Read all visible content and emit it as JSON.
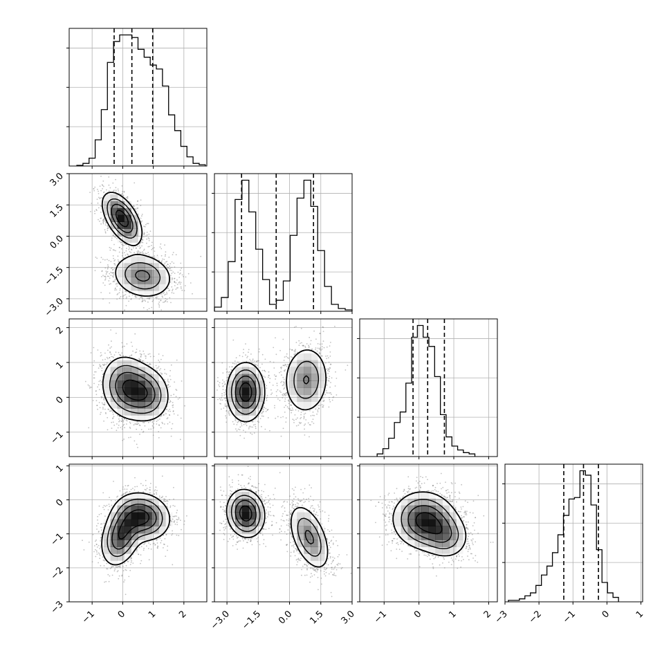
{
  "chart_data": {
    "type": "corner",
    "n_params": 4,
    "axis_labels": [
      "",
      "",
      "",
      ""
    ],
    "params": [
      {
        "range": [
          -1.75,
          2.75
        ],
        "ticks": [
          -1,
          0,
          1,
          2
        ],
        "tick_labels": [
          "−1",
          "0",
          "1",
          "2"
        ],
        "quantiles": [
          -0.28,
          0.3,
          0.98
        ],
        "hist_start": -1.5,
        "hist_step": 0.2,
        "hist_counts": [
          0.005,
          0.02,
          0.06,
          0.2,
          0.43,
          0.79,
          0.95,
          1.0,
          1.0,
          0.98,
          0.89,
          0.83,
          0.77,
          0.74,
          0.61,
          0.39,
          0.27,
          0.15,
          0.07,
          0.02,
          0.01
        ]
      },
      {
        "range": [
          -3.6,
          3.0
        ],
        "ticks": [
          -3.0,
          -1.5,
          0.0,
          1.5,
          3.0
        ],
        "tick_labels": [
          "−3.0",
          "−1.5",
          "0.0",
          "1.5",
          "3.0"
        ],
        "quantiles": [
          -2.3,
          -0.64,
          1.15
        ],
        "hist_start": -3.6,
        "hist_step": 0.33,
        "hist_counts": [
          0.03,
          0.1,
          0.36,
          0.81,
          0.95,
          0.72,
          0.45,
          0.23,
          0.05,
          0.08,
          0.22,
          0.55,
          0.82,
          0.95,
          0.76,
          0.44,
          0.18,
          0.05,
          0.02,
          0.01
        ]
      },
      {
        "range": [
          -1.7,
          2.25
        ],
        "ticks": [
          -1,
          0,
          1,
          2
        ],
        "tick_labels": [
          "−1",
          "0",
          "1",
          "2"
        ],
        "quantiles": [
          -0.17,
          0.25,
          0.73
        ],
        "hist_start": -1.2,
        "hist_step": 0.165,
        "hist_counts": [
          0.02,
          0.06,
          0.14,
          0.26,
          0.34,
          0.56,
          0.91,
          1.0,
          0.91,
          0.84,
          0.61,
          0.32,
          0.15,
          0.08,
          0.05,
          0.03,
          0.02
        ]
      },
      {
        "range": [
          -3.0,
          1.05
        ],
        "ticks": [
          -3,
          -2,
          -1,
          0,
          1
        ],
        "tick_labels": [
          "−3",
          "−2",
          "−1",
          "0",
          "1"
        ],
        "quantiles": [
          -1.27,
          -0.69,
          -0.25
        ],
        "hist_start": -2.9,
        "hist_step": 0.162,
        "hist_counts": [
          0.01,
          0.01,
          0.02,
          0.04,
          0.06,
          0.11,
          0.18,
          0.24,
          0.33,
          0.45,
          0.58,
          0.69,
          0.7,
          0.88,
          0.85,
          0.65,
          0.35,
          0.13,
          0.06,
          0.03
        ]
      }
    ],
    "pairs": [
      {
        "row": 1,
        "col": 0,
        "blobs": [
          {
            "cx": -0.02,
            "cy": 0.85,
            "sx": 0.32,
            "sy": 0.62,
            "rho": -0.55,
            "w": 0.5
          },
          {
            "cx": 0.65,
            "cy": -1.9,
            "sx": 0.5,
            "sy": 0.55,
            "rho": -0.15,
            "w": 0.5
          }
        ]
      },
      {
        "row": 2,
        "col": 0,
        "blobs": [
          {
            "cx": 0.1,
            "cy": 0.3,
            "sx": 0.4,
            "sy": 0.45,
            "rho": -0.1,
            "w": 0.55
          },
          {
            "cx": 0.75,
            "cy": 0.1,
            "sx": 0.4,
            "sy": 0.4,
            "rho": -0.1,
            "w": 0.45
          }
        ]
      },
      {
        "row": 2,
        "col": 1,
        "blobs": [
          {
            "cx": -2.1,
            "cy": 0.15,
            "sx": 0.45,
            "sy": 0.42,
            "rho": 0.0,
            "w": 0.55
          },
          {
            "cx": 0.8,
            "cy": 0.5,
            "sx": 0.55,
            "sy": 0.5,
            "rho": 0.05,
            "w": 0.45
          }
        ]
      },
      {
        "row": 3,
        "col": 0,
        "blobs": [
          {
            "cx": -0.05,
            "cy": -1.05,
            "sx": 0.33,
            "sy": 0.45,
            "rho": 0.3,
            "w": 0.45
          },
          {
            "cx": 0.65,
            "cy": -0.5,
            "sx": 0.45,
            "sy": 0.35,
            "rho": -0.1,
            "w": 0.55
          }
        ]
      },
      {
        "row": 3,
        "col": 1,
        "blobs": [
          {
            "cx": -2.1,
            "cy": -0.4,
            "sx": 0.45,
            "sy": 0.35,
            "rho": -0.1,
            "w": 0.55
          },
          {
            "cx": 0.95,
            "cy": -1.1,
            "sx": 0.5,
            "sy": 0.5,
            "rho": -0.5,
            "w": 0.45
          }
        ]
      },
      {
        "row": 3,
        "col": 2,
        "blobs": [
          {
            "cx": 0.15,
            "cy": -0.6,
            "sx": 0.45,
            "sy": 0.42,
            "rho": -0.05,
            "w": 0.75
          },
          {
            "cx": 0.75,
            "cy": -1.05,
            "sx": 0.35,
            "sy": 0.35,
            "rho": -0.1,
            "w": 0.25
          }
        ]
      }
    ],
    "contour_levels": [
      0.13,
      0.32,
      0.55,
      0.82
    ],
    "grid": true,
    "scatter_points": true,
    "colors": {
      "line": "#000000",
      "scatter": "#808080",
      "grid": "#b0b0b0",
      "density": "#000000"
    }
  }
}
